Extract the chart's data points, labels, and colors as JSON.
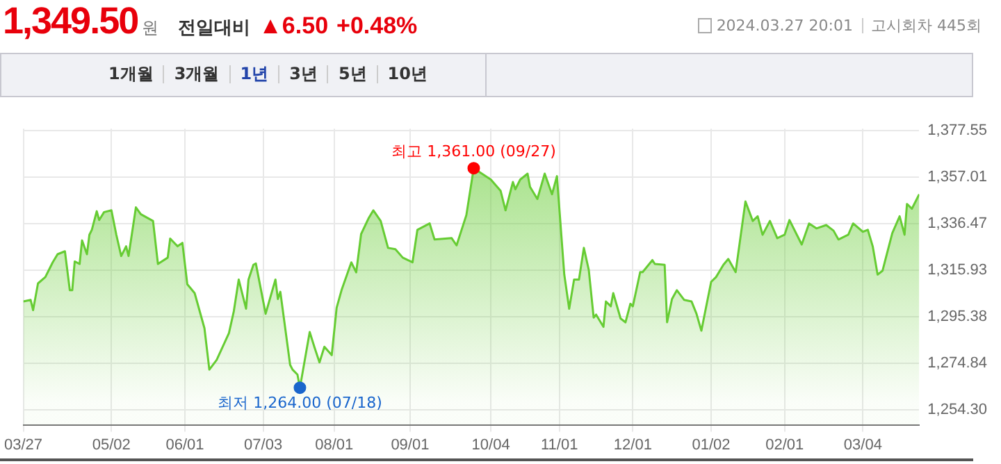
{
  "chart_data": {
    "type": "area",
    "title": "1,349.50",
    "annotations": [
      "원",
      "전일대비",
      "▲6.50",
      "+0.48%",
      "2024.03.27 20:01",
      "고시회차 445회",
      "1개월",
      "3개월",
      "1년",
      "3년",
      "5년",
      "10년",
      {
        "text": "최고 1,361.00 (09/27)",
        "x": "2023-09-27",
        "y": 1361
      },
      {
        "text": "최저 1,264.00 (07/18)",
        "x": "2023-07-18",
        "y": 1264
      }
    ],
    "series": [
      {
        "color": "#66cc33",
        "marker": "none",
        "x": [
          "2023-03-27",
          "2023-03-30",
          "2023-03-31",
          "2023-04-02",
          "2023-04-05",
          "2023-04-08",
          "2023-04-10",
          "2023-04-13",
          "2023-04-15",
          "2023-04-16",
          "2023-04-17",
          "2023-04-19",
          "2023-04-20",
          "2023-04-22",
          "2023-04-23",
          "2023-04-24",
          "2023-04-26",
          "2023-04-27",
          "2023-04-29",
          "2023-05-02",
          "2023-05-04",
          "2023-05-06",
          "2023-05-08",
          "2023-05-09",
          "2023-05-12",
          "2023-05-14",
          "2023-05-19",
          "2023-05-21",
          "2023-05-25",
          "2023-05-26",
          "2023-05-29",
          "2023-05-31",
          "2023-06-02",
          "2023-06-05",
          "2023-06-09",
          "2023-06-11",
          "2023-06-14",
          "2023-06-19",
          "2023-06-21",
          "2023-06-23",
          "2023-06-26",
          "2023-06-27",
          "2023-06-29",
          "2023-06-30",
          "2023-07-04",
          "2023-07-08",
          "2023-07-09",
          "2023-07-10",
          "2023-07-14",
          "2023-07-15",
          "2023-07-17",
          "2023-07-18",
          "2023-07-22",
          "2023-07-24",
          "2023-07-26",
          "2023-07-28",
          "2023-07-31",
          "2023-08-02",
          "2023-08-04",
          "2023-08-08",
          "2023-08-10",
          "2023-08-12",
          "2023-08-15",
          "2023-08-17",
          "2023-08-20",
          "2023-08-23",
          "2023-08-26",
          "2023-08-29",
          "2023-09-02",
          "2023-09-04",
          "2023-09-09",
          "2023-09-11",
          "2023-09-18",
          "2023-09-20",
          "2023-09-24",
          "2023-09-27",
          "2023-10-04",
          "2023-10-08",
          "2023-10-10",
          "2023-10-13",
          "2023-10-14",
          "2023-10-16",
          "2023-10-19",
          "2023-10-20",
          "2023-10-23",
          "2023-10-26",
          "2023-10-29",
          "2023-10-31",
          "2023-11-03",
          "2023-11-05",
          "2023-11-07",
          "2023-11-09",
          "2023-11-11",
          "2023-11-13",
          "2023-11-15",
          "2023-11-16",
          "2023-11-19",
          "2023-11-20",
          "2023-11-22",
          "2023-11-23",
          "2023-11-26",
          "2023-11-28",
          "2023-11-30",
          "2023-12-01",
          "2023-12-04",
          "2023-12-05",
          "2023-12-09",
          "2023-12-10",
          "2023-12-14",
          "2023-12-15",
          "2023-12-17",
          "2023-12-19",
          "2023-12-22",
          "2023-12-25",
          "2023-12-27",
          "2023-12-29",
          "2024-01-02",
          "2024-01-04",
          "2024-01-07",
          "2024-01-09",
          "2024-01-12",
          "2024-01-16",
          "2024-01-19",
          "2024-01-21",
          "2024-01-23",
          "2024-01-26",
          "2024-01-29",
          "2024-02-01",
          "2024-02-03",
          "2024-02-08",
          "2024-02-11",
          "2024-02-14",
          "2024-02-18",
          "2024-02-21",
          "2024-02-23",
          "2024-02-27",
          "2024-02-29",
          "2024-03-04",
          "2024-03-06",
          "2024-03-08",
          "2024-03-10",
          "2024-03-12",
          "2024-03-16",
          "2024-03-19",
          "2024-03-21",
          "2024-03-22",
          "2024-03-24",
          "2024-03-27"
        ],
        "values": [
          1302.1,
          1302.8,
          1298.3,
          1310.1,
          1312.9,
          1319.4,
          1323.0,
          1324.3,
          1307.1,
          1307.1,
          1319.8,
          1318.7,
          1329.1,
          1323.0,
          1331.6,
          1333.8,
          1342.0,
          1338.1,
          1341.6,
          1342.4,
          1331.6,
          1322.2,
          1326.5,
          1322.2,
          1343.7,
          1340.7,
          1337.7,
          1318.7,
          1321.5,
          1329.9,
          1326.5,
          1328.0,
          1309.7,
          1305.8,
          1290.3,
          1272.0,
          1276.3,
          1288.1,
          1297.8,
          1311.8,
          1298.9,
          1311.8,
          1318.3,
          1318.9,
          1296.7,
          1311.8,
          1303.2,
          1306.4,
          1274.1,
          1272.0,
          1269.8,
          1264.0,
          1288.6,
          1281.7,
          1275.2,
          1282.1,
          1278.4,
          1299.3,
          1307.1,
          1319.4,
          1315.0,
          1331.9,
          1338.8,
          1342.4,
          1337.7,
          1325.8,
          1325.2,
          1321.5,
          1319.4,
          1333.8,
          1336.6,
          1329.5,
          1330.1,
          1326.9,
          1340.3,
          1361.0,
          1356.0,
          1351.0,
          1342.4,
          1354.9,
          1351.7,
          1356.0,
          1358.6,
          1352.8,
          1347.4,
          1358.6,
          1349.5,
          1357.5,
          1314.0,
          1298.9,
          1311.8,
          1311.8,
          1325.8,
          1316.1,
          1295.0,
          1296.3,
          1290.9,
          1302.1,
          1300.0,
          1305.8,
          1294.6,
          1292.9,
          1301.1,
          1300.0,
          1315.1,
          1315.1,
          1320.4,
          1318.7,
          1318.3,
          1292.9,
          1303.2,
          1307.1,
          1302.8,
          1302.1,
          1296.7,
          1289.2,
          1310.8,
          1312.9,
          1318.3,
          1320.9,
          1315.1,
          1346.3,
          1337.7,
          1339.8,
          1331.6,
          1337.7,
          1330.1,
          1331.6,
          1338.1,
          1327.3,
          1336.6,
          1334.4,
          1335.9,
          1333.4,
          1329.5,
          1331.6,
          1336.6,
          1332.9,
          1333.8,
          1326.5,
          1314.0,
          1315.7,
          1332.3,
          1339.8,
          1331.6,
          1345.2,
          1343.1,
          1349.5
        ]
      },
      {
        "type": "scatter",
        "color": "#ff0000",
        "marker": "circle",
        "x": [
          "2023-09-27"
        ],
        "values": [
          1361
        ]
      },
      {
        "type": "scatter",
        "color": "#1a66cc",
        "marker": "circle",
        "x": [
          "2023-07-18"
        ],
        "values": [
          1264
        ]
      }
    ],
    "xlim": [
      "2023-03-27",
      "2024-03-27"
    ],
    "xticks": [
      {
        "value": "2023-03-27",
        "label": "03/27"
      },
      {
        "value": "2023-05-02",
        "label": "05/02"
      },
      {
        "value": "2023-06-01",
        "label": "06/01"
      },
      {
        "value": "2023-07-03",
        "label": "07/03"
      },
      {
        "value": "2023-08-01",
        "label": "08/01"
      },
      {
        "value": "2023-09-01",
        "label": "09/01"
      },
      {
        "value": "2023-10-04",
        "label": "10/04"
      },
      {
        "value": "2023-11-01",
        "label": "11/01"
      },
      {
        "value": "2023-12-01",
        "label": "12/01"
      },
      {
        "value": "2024-01-02",
        "label": "01/02"
      },
      {
        "value": "2024-02-01",
        "label": "02/01"
      },
      {
        "value": "2024-03-04",
        "label": "03/04"
      }
    ],
    "ylim": [
      1247.6,
      1378.5
    ],
    "yticks": [
      {
        "value": 1254.3,
        "label": "1,254.30"
      },
      {
        "value": 1274.84,
        "label": "1,274.84"
      },
      {
        "value": 1295.38,
        "label": "1,295.38"
      },
      {
        "value": 1315.93,
        "label": "1,315.93"
      },
      {
        "value": 1336.47,
        "label": "1,336.47"
      },
      {
        "value": 1357.01,
        "label": "1,357.01"
      },
      {
        "value": 1377.55,
        "label": "1,377.55"
      }
    ],
    "grid": true
  }
}
